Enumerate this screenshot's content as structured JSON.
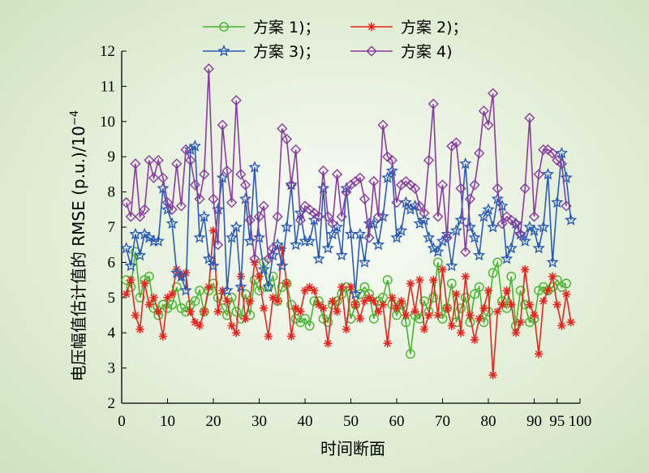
{
  "chart_data": {
    "type": "line",
    "xlabel": "时间断面",
    "ylabel": "电压幅值估计值的 RMSE (p.u.)/10",
    "ylabel_exp": "−4",
    "xlim": [
      0,
      100
    ],
    "ylim": [
      2,
      12
    ],
    "xticks": [
      0,
      10,
      20,
      30,
      40,
      50,
      60,
      70,
      80,
      90,
      95,
      100
    ],
    "yticks": [
      2,
      3,
      4,
      5,
      6,
      7,
      8,
      9,
      10,
      11,
      12
    ],
    "legend_position": "top",
    "series": [
      {
        "name": "方案 1)；",
        "color": "#44b52a",
        "marker": "circle",
        "values": [
          5.5,
          5.3,
          6.3,
          5.0,
          5.5,
          5.6,
          4.7,
          4.5,
          4.8,
          4.7,
          4.8,
          5.3,
          4.7,
          4.6,
          4.8,
          4.9,
          5.2,
          4.6,
          5.2,
          5.4,
          5.0,
          4.7,
          4.5,
          5.0,
          4.6,
          4.4,
          5.1,
          4.5,
          5.5,
          5.2,
          6.0,
          5.3,
          5.6,
          4.9,
          5.3,
          5.4,
          4.8,
          4.4,
          4.3,
          4.4,
          4.2,
          4.9,
          4.9,
          4.4,
          4.3,
          4.8,
          4.9,
          5.1,
          5.3,
          4.4,
          4.8,
          5.1,
          5.3,
          5.1,
          4.4,
          4.9,
          5.0,
          5.5,
          4.8,
          4.5,
          4.8,
          4.3,
          3.4,
          4.5,
          4.4,
          4.9,
          4.6,
          5.0,
          6.0,
          4.4,
          4.7,
          5.4,
          4.3,
          4.7,
          5.0,
          4.3,
          5.1,
          5.3,
          4.3,
          4.6,
          5.7,
          6.0,
          4.9,
          4.7,
          5.6,
          4.2,
          5.2,
          4.8,
          4.3,
          4.4,
          5.2,
          5.3,
          5.2,
          5.3,
          5.5,
          5.3,
          5.4
        ]
      },
      {
        "name": "方案 2)；",
        "color": "#e8231d",
        "marker": "asterisk",
        "values": [
          5.1,
          5.5,
          4.5,
          4.1,
          5.4,
          4.8,
          5.0,
          4.6,
          3.9,
          5.0,
          5.1,
          5.8,
          5.6,
          5.7,
          4.6,
          4.3,
          4.2,
          4.6,
          5.3,
          6.9,
          4.6,
          5.2,
          4.9,
          4.2,
          4.0,
          5.6,
          4.4,
          4.9,
          6.0,
          5.6,
          4.7,
          3.9,
          5.0,
          4.9,
          6.4,
          5.4,
          3.9,
          4.7,
          4.6,
          5.2,
          5.3,
          5.2,
          4.8,
          4.7,
          3.7,
          4.9,
          4.6,
          5.3,
          4.1,
          5.3,
          4.8,
          4.4,
          4.9,
          5.0,
          4.9,
          4.6,
          4.8,
          3.7,
          5.0,
          4.7,
          4.9,
          4.5,
          5.4,
          4.6,
          5.5,
          4.1,
          4.5,
          5.5,
          4.5,
          5.8,
          4.7,
          4.2,
          5.1,
          4.0,
          5.6,
          4.5,
          3.8,
          4.4,
          4.7,
          5.2,
          2.8,
          4.6,
          4.8,
          5.2,
          4.8,
          4.0,
          4.3,
          5.8,
          4.8,
          4.5,
          3.4,
          4.9,
          5.2,
          5.6,
          4.8,
          4.2,
          5.1,
          4.3
        ]
      },
      {
        "name": "方案 3)；",
        "color": "#2a5bb5",
        "marker": "star",
        "values": [
          6.4,
          5.9,
          6.8,
          6.2,
          6.8,
          6.7,
          6.6,
          6.6,
          8.1,
          7.5,
          7.1,
          5.7,
          5.6,
          5.2,
          9.2,
          9.3,
          6.7,
          7.3,
          6.1,
          5.9,
          7.5,
          8.4,
          5.2,
          6.7,
          7.0,
          5.3,
          7.8,
          6.6,
          8.7,
          6.7,
          5.8,
          5.3,
          6.2,
          6.5,
          5.9,
          7.0,
          8.2,
          6.5,
          7.4,
          6.6,
          6.6,
          7.2,
          6.1,
          8.1,
          6.4,
          6.8,
          7.0,
          6.2,
          8.1,
          6.8,
          5.1,
          6.8,
          6.0,
          7.1,
          7.1,
          6.5,
          7.3,
          8.4,
          8.6,
          6.7,
          6.9,
          7.7,
          7.5,
          7.6,
          7.1,
          7.2,
          6.7,
          6.4,
          6.3,
          6.6,
          6.8,
          5.9,
          6.9,
          7.2,
          8.8,
          7.0,
          6.7,
          6.2,
          7.3,
          7.5,
          7.0,
          7.8,
          7.6,
          6.1,
          6.4,
          7.1,
          6.8,
          6.6,
          7.0,
          6.9,
          6.4,
          7.0,
          8.5,
          6.0,
          7.7,
          9.1,
          8.4,
          7.2
        ]
      },
      {
        "name": "方案 4)",
        "color": "#8a3aa0",
        "marker": "diamond",
        "values": [
          7.7,
          7.3,
          8.8,
          7.3,
          7.5,
          8.9,
          8.4,
          8.9,
          8.4,
          7.7,
          7.5,
          8.8,
          7.6,
          9.2,
          8.9,
          8.2,
          7.8,
          8.5,
          11.5,
          7.8,
          6.5,
          9.9,
          8.6,
          7.7,
          10.6,
          8.5,
          8.2,
          7.2,
          6.1,
          7.3,
          7.6,
          6.1,
          6.4,
          7.3,
          9.8,
          9.5,
          8.2,
          9.2,
          7.2,
          7.6,
          7.5,
          7.4,
          7.3,
          8.6,
          7.3,
          7.1,
          8.5,
          7.3,
          8.0,
          8.2,
          8.3,
          8.4,
          7.8,
          6.7,
          8.3,
          7.3,
          9.9,
          9.0,
          8.9,
          7.7,
          8.2,
          8.3,
          8.2,
          8.1,
          7.6,
          7.4,
          8.9,
          10.5,
          7.3,
          8.2,
          6.7,
          9.3,
          9.4,
          8.1,
          6.3,
          7.8,
          8.2,
          9.1,
          10.3,
          9.9,
          10.8,
          8.1,
          7.1,
          7.3,
          7.2,
          7.1,
          6.8,
          8.1,
          10.1,
          7.3,
          8.5,
          9.2,
          9.2,
          9.1,
          8.9,
          8.8,
          7.6
        ]
      }
    ]
  }
}
